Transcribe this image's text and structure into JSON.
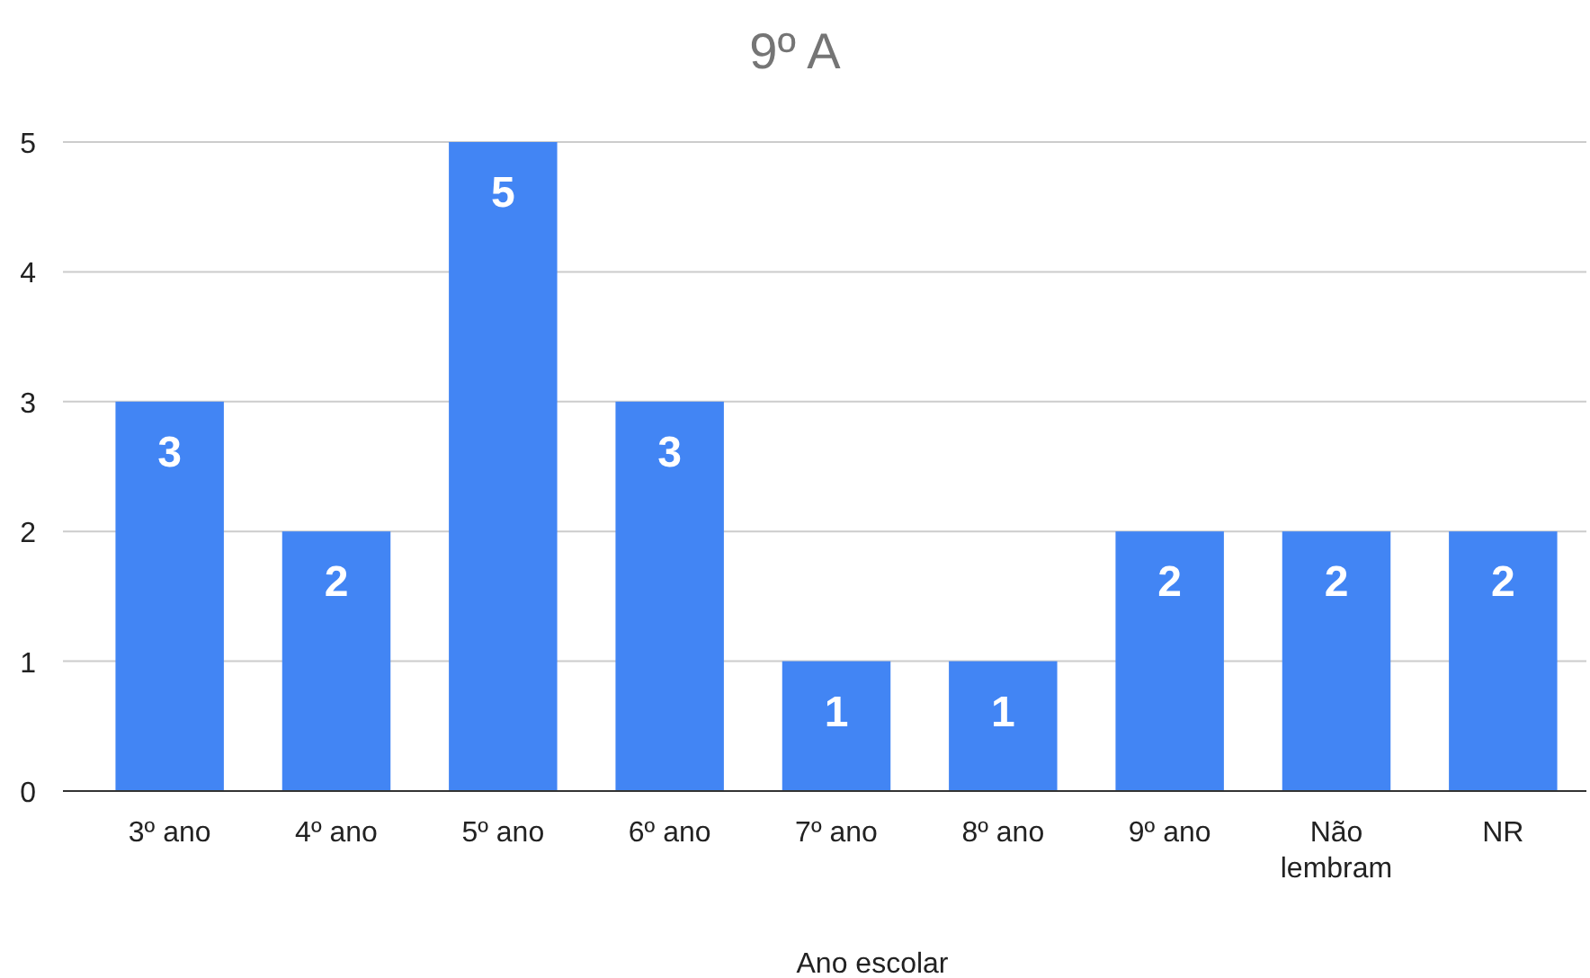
{
  "chart_data": {
    "type": "bar",
    "title": "9º A",
    "xlabel": "Ano escolar",
    "categories": [
      "3º ano",
      "4º ano",
      "5º ano",
      "6º ano",
      "7º ano",
      "8º ano",
      "9º ano",
      "Não lembram",
      "NR"
    ],
    "values": [
      3,
      2,
      5,
      3,
      1,
      1,
      2,
      2,
      2
    ],
    "color": "#4285f4",
    "ylim": [
      0,
      5
    ],
    "yticks": [
      0,
      1,
      2,
      3,
      4,
      5
    ],
    "grid": "y",
    "data_labels": true
  }
}
